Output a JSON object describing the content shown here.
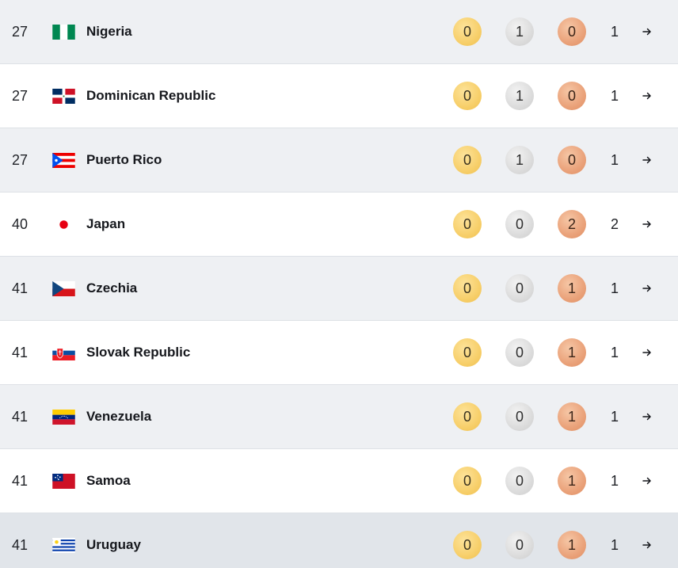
{
  "rows": [
    {
      "rank": "27",
      "country": "Nigeria",
      "flag": "nigeria-flag",
      "gold": "0",
      "silver": "1",
      "bronze": "0",
      "total": "1"
    },
    {
      "rank": "27",
      "country": "Dominican Republic",
      "flag": "dominican-republic-flag",
      "gold": "0",
      "silver": "1",
      "bronze": "0",
      "total": "1"
    },
    {
      "rank": "27",
      "country": "Puerto Rico",
      "flag": "puerto-rico-flag",
      "gold": "0",
      "silver": "1",
      "bronze": "0",
      "total": "1"
    },
    {
      "rank": "40",
      "country": "Japan",
      "flag": "japan-flag",
      "gold": "0",
      "silver": "0",
      "bronze": "2",
      "total": "2"
    },
    {
      "rank": "41",
      "country": "Czechia",
      "flag": "czechia-flag",
      "gold": "0",
      "silver": "0",
      "bronze": "1",
      "total": "1"
    },
    {
      "rank": "41",
      "country": "Slovak Republic",
      "flag": "slovakia-flag",
      "gold": "0",
      "silver": "0",
      "bronze": "1",
      "total": "1"
    },
    {
      "rank": "41",
      "country": "Venezuela",
      "flag": "venezuela-flag",
      "gold": "0",
      "silver": "0",
      "bronze": "1",
      "total": "1"
    },
    {
      "rank": "41",
      "country": "Samoa",
      "flag": "samoa-flag",
      "gold": "0",
      "silver": "0",
      "bronze": "1",
      "total": "1"
    },
    {
      "rank": "41",
      "country": "Uruguay",
      "flag": "uruguay-flag",
      "gold": "0",
      "silver": "0",
      "bronze": "1",
      "total": "1"
    }
  ],
  "colors": {
    "row_alt": "#eef0f3",
    "row_white": "#ffffff",
    "row_hover": "#e1e5ea",
    "gold": "#f7cf6a",
    "silver": "#dcdcdc",
    "bronze": "#eaa27a"
  },
  "icons": {
    "row_arrow": "arrow-right-icon"
  }
}
